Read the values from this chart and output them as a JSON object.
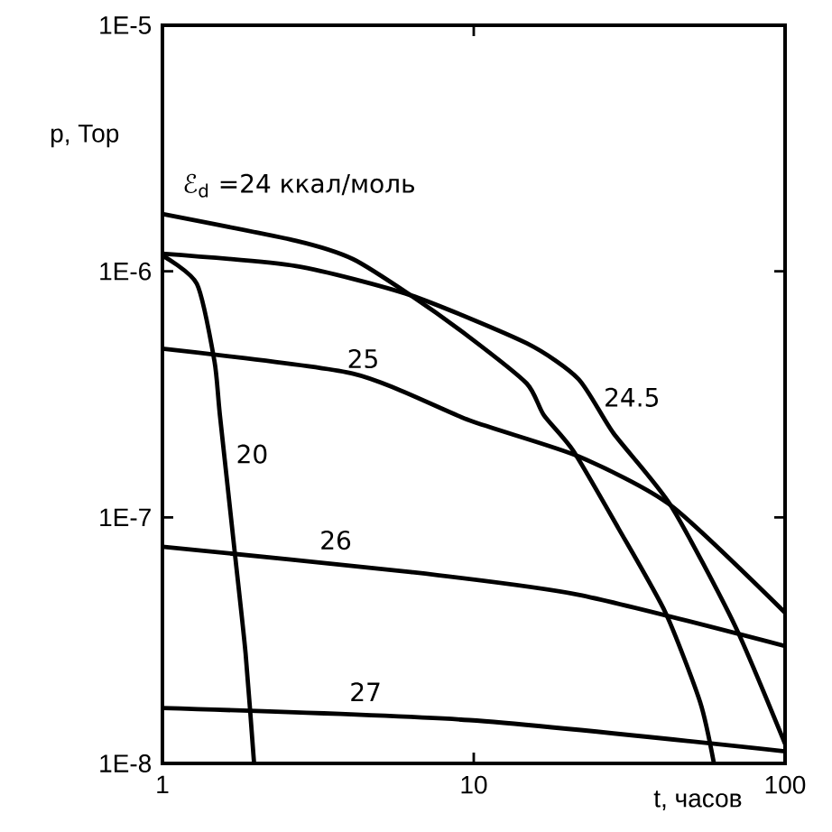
{
  "chart_data": {
    "type": "line",
    "xlabel": "t, часов",
    "ylabel": "p, Тор",
    "log": "xy",
    "grid": false,
    "color": "#000000",
    "xlim": [
      1,
      100
    ],
    "xticks": [
      1,
      10,
      100
    ],
    "ylim": [
      1e-08,
      1e-05
    ],
    "yticks": [
      {
        "value": 1e-08,
        "label": "1E-8"
      },
      {
        "value": 1e-07,
        "label": "1E-7"
      },
      {
        "value": 1e-06,
        "label": "1E-6"
      },
      {
        "value": 1e-05,
        "label": "1E-5"
      }
    ],
    "series": [
      {
        "name": "20",
        "x": [
          1,
          1.29,
          1.47,
          1.53,
          1.71,
          1.85,
          1.97
        ],
        "values": [
          1.16e-06,
          8.9e-07,
          4.3e-07,
          2.6e-07,
          7.1e-08,
          2.8e-08,
          1e-08
        ]
      },
      {
        "name": "ℰ$_{d}$ =24 ккал/моль",
        "x": [
          1,
          2.69,
          4.1,
          6.26,
          9.68,
          14.8,
          16.8,
          20.9,
          29.2,
          41.3,
          53.4,
          59.1
        ],
        "values": [
          1.71e-06,
          1.33e-06,
          1.12e-06,
          8e-07,
          5.4e-07,
          3.5e-07,
          2.6e-07,
          1.86e-07,
          9e-08,
          4.1e-08,
          1.77e-08,
          1e-08
        ]
      },
      {
        "name": "24.5",
        "x": [
          1,
          2.69,
          6.26,
          14.8,
          21.7,
          28.1,
          42.9,
          68.9,
          100
        ],
        "values": [
          1.18e-06,
          1.05e-06,
          8e-07,
          5.1e-07,
          3.65e-07,
          2.2e-07,
          1.12e-07,
          3.65e-08,
          1.2e-08
        ]
      },
      {
        "name": "25",
        "x": [
          1,
          4.1,
          9.68,
          21.7,
          42.9,
          100
        ],
        "values": [
          4.85e-07,
          3.84e-07,
          2.48e-07,
          1.77e-07,
          1.12e-07,
          4.1e-08
        ]
      },
      {
        "name": "26",
        "x": [
          1,
          6.26,
          21.7,
          100
        ],
        "values": [
          7.6e-08,
          6e-08,
          4.85e-08,
          3e-08
        ]
      },
      {
        "name": "27",
        "x": [
          1,
          9.68,
          100
        ],
        "values": [
          1.68e-08,
          1.5e-08,
          1.12e-08
        ]
      }
    ]
  }
}
